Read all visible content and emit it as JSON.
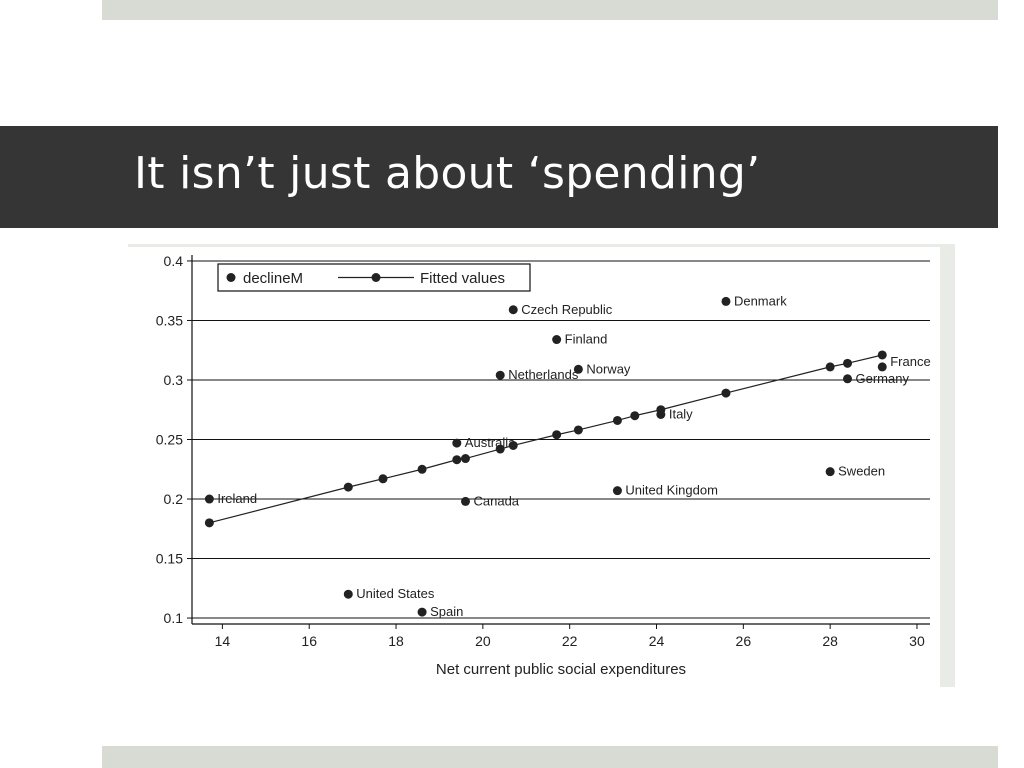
{
  "slide": {
    "title": "It isn’t just about ‘spending’",
    "colors": {
      "title_band": "#353535",
      "accent_bars": "#d8dbd4"
    }
  },
  "chart_data": {
    "type": "scatter",
    "title": "",
    "xlabel": "Net current public social expenditures",
    "ylabel": "",
    "xlim": [
      13.3,
      30.3
    ],
    "ylim": [
      0.095,
      0.405
    ],
    "xticks": [
      14,
      16,
      18,
      20,
      22,
      24,
      26,
      28,
      30
    ],
    "yticks": [
      0.1,
      0.15,
      0.2,
      0.25,
      0.3,
      0.35,
      0.4
    ],
    "ytick_labels": [
      "0.1",
      "0.15",
      "0.2",
      "0.25",
      "0.3",
      "0.35",
      "0.4"
    ],
    "grid": "horizontal",
    "legend": {
      "placement": "top-left",
      "entries": [
        {
          "label": "declineM",
          "style": "marker"
        },
        {
          "label": "Fitted values",
          "style": "line-marker"
        }
      ]
    },
    "series": [
      {
        "name": "declineM",
        "style": "scatter",
        "color": "#222222",
        "points": [
          {
            "x": 13.7,
            "y": 0.2,
            "label": "Ireland"
          },
          {
            "x": 16.9,
            "y": 0.12,
            "label": "United States"
          },
          {
            "x": 18.6,
            "y": 0.105,
            "label": "Spain"
          },
          {
            "x": 19.4,
            "y": 0.247,
            "label": "Australia"
          },
          {
            "x": 19.6,
            "y": 0.198,
            "label": "Canada"
          },
          {
            "x": 20.4,
            "y": 0.304,
            "label": "Netherlands"
          },
          {
            "x": 20.7,
            "y": 0.359,
            "label": "Czech Republic"
          },
          {
            "x": 21.7,
            "y": 0.334,
            "label": "Finland"
          },
          {
            "x": 22.2,
            "y": 0.309,
            "label": "Norway"
          },
          {
            "x": 23.1,
            "y": 0.207,
            "label": "United Kingdom"
          },
          {
            "x": 24.1,
            "y": 0.271,
            "label": "Italy"
          },
          {
            "x": 25.6,
            "y": 0.366,
            "label": "Denmark"
          },
          {
            "x": 28.0,
            "y": 0.223,
            "label": "Sweden"
          },
          {
            "x": 28.4,
            "y": 0.301,
            "label": "Germany"
          },
          {
            "x": 29.2,
            "y": 0.311,
            "label": "France"
          }
        ]
      },
      {
        "name": "Fitted values",
        "style": "line-marker",
        "color": "#222222",
        "points": [
          {
            "x": 13.7,
            "y": 0.18
          },
          {
            "x": 16.9,
            "y": 0.21
          },
          {
            "x": 17.7,
            "y": 0.217
          },
          {
            "x": 18.6,
            "y": 0.225
          },
          {
            "x": 19.4,
            "y": 0.233
          },
          {
            "x": 19.6,
            "y": 0.234
          },
          {
            "x": 20.4,
            "y": 0.242
          },
          {
            "x": 20.7,
            "y": 0.245
          },
          {
            "x": 21.7,
            "y": 0.254
          },
          {
            "x": 22.2,
            "y": 0.258
          },
          {
            "x": 23.1,
            "y": 0.266
          },
          {
            "x": 23.5,
            "y": 0.27
          },
          {
            "x": 24.1,
            "y": 0.275
          },
          {
            "x": 25.6,
            "y": 0.289
          },
          {
            "x": 28.0,
            "y": 0.311
          },
          {
            "x": 28.4,
            "y": 0.314
          },
          {
            "x": 29.2,
            "y": 0.321
          }
        ]
      }
    ]
  }
}
